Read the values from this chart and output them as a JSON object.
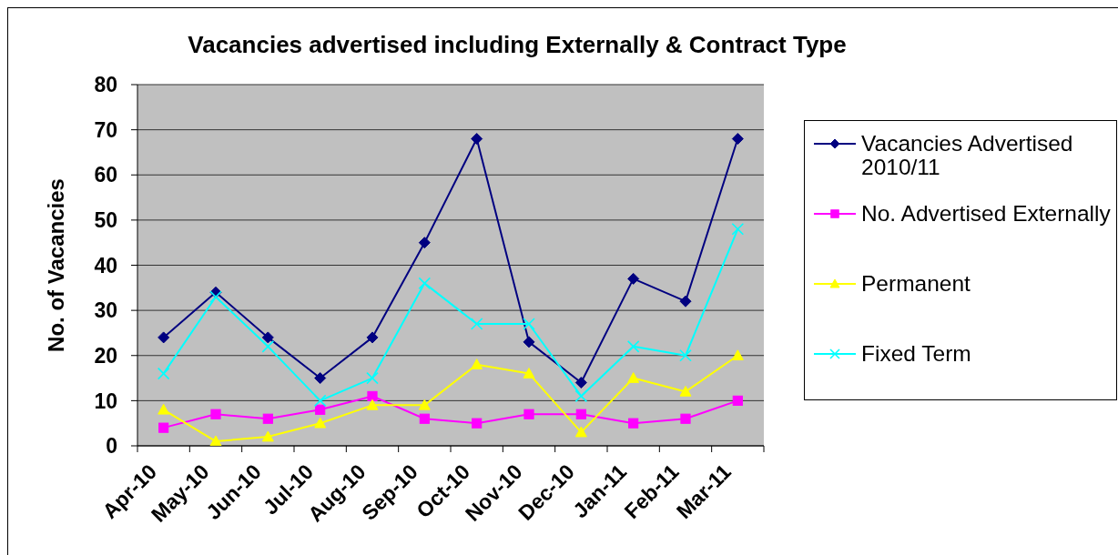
{
  "chart_data": {
    "type": "line",
    "title": "Vacancies advertised including Externally & Contract Type",
    "ylabel": "No. of Vacancies",
    "categories": [
      "Apr-10",
      "May-10",
      "Jun-10",
      "Jul-10",
      "Aug-10",
      "Sep-10",
      "Oct-10",
      "Nov-10",
      "Dec-10",
      "Jan-11",
      "Feb-11",
      "Mar-11"
    ],
    "series": [
      {
        "name": "Vacancies Advertised 2010/11",
        "color": "#000080",
        "marker": "diamond",
        "values": [
          24,
          34,
          24,
          15,
          24,
          45,
          68,
          23,
          14,
          37,
          32,
          68
        ]
      },
      {
        "name": "No. Advertised Externally",
        "color": "#ff00ff",
        "marker": "square",
        "values": [
          4,
          7,
          6,
          8,
          11,
          6,
          5,
          7,
          7,
          5,
          6,
          10
        ]
      },
      {
        "name": "Permanent",
        "color": "#ffff00",
        "marker": "triangle",
        "values": [
          8,
          1,
          2,
          5,
          9,
          9,
          18,
          16,
          3,
          15,
          12,
          20
        ]
      },
      {
        "name": "Fixed Term",
        "color": "#00ffff",
        "marker": "cross",
        "values": [
          16,
          33,
          22,
          10,
          15,
          36,
          27,
          27,
          11,
          22,
          20,
          48
        ]
      }
    ],
    "ylim": [
      0,
      80
    ],
    "yticks": [
      0,
      10,
      20,
      30,
      40,
      50,
      60,
      70,
      80
    ],
    "grid": "y",
    "legend": "right"
  }
}
